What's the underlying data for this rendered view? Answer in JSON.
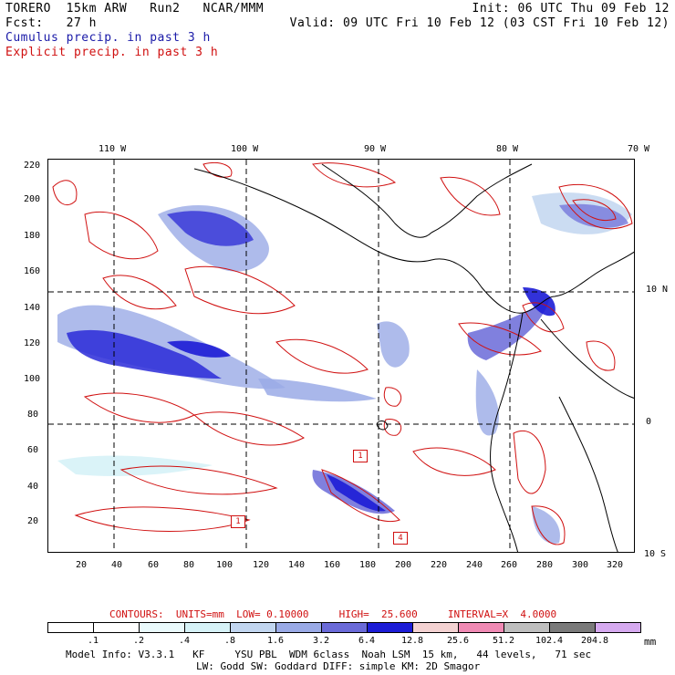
{
  "header": {
    "model": "TORERO  15km ARW   Run2   NCAR/MMM",
    "init": "Init: 06 UTC Thu 09 Feb 12",
    "fcst": "Fcst:   27 h",
    "valid": "Valid: 09 UTC Fri 10 Feb 12 (03 CST Fri 10 Feb 12)"
  },
  "legend": {
    "cumulus": "Cumulus precip. in past 3 h",
    "explicit": "Explicit precip. in past 3 h",
    "cumulus_color": "#1a1aa8",
    "explicit_color": "#d01010"
  },
  "map": {
    "lon_labels": [
      "110 W",
      "100 W",
      "90 W",
      "80 W",
      "70 W"
    ],
    "lat_labels": [
      "10 N",
      "0",
      "10 S"
    ],
    "y_ticks": [
      "220",
      "200",
      "180",
      "160",
      "140",
      "120",
      "100",
      "80",
      "60",
      "40",
      "20"
    ],
    "x_ticks": [
      "20",
      "40",
      "60",
      "80",
      "100",
      "120",
      "140",
      "160",
      "180",
      "200",
      "220",
      "240",
      "260",
      "280",
      "300",
      "320"
    ],
    "box_labels": [
      "1",
      "1",
      "4"
    ]
  },
  "contours_line": {
    "label": "CONTOURS:  UNITS=mm  LOW= 0.10000     HIGH=  25.600     INTERVAL=X  4.0000"
  },
  "colorbar": {
    "labels": [
      ".1",
      ".2",
      ".4",
      ".8",
      "1.6",
      "3.2",
      "6.4",
      "12.8",
      "25.6",
      "51.2",
      "102.4",
      "204.8"
    ],
    "colors": [
      "#ffffff",
      "#ffffff",
      "#eafafc",
      "#d6f2f7",
      "#c2d6f0",
      "#9aaae6",
      "#6a6ad8",
      "#1c1cd6",
      "#f4d2d2",
      "#f08ab4",
      "#bebebe",
      "#7a7a7a",
      "#d6aaf0"
    ],
    "units": "mm"
  },
  "footer": {
    "line1": "Model Info: V3.3.1   KF     YSU PBL  WDM 6class  Noah LSM  15 km,   44 levels,   71 sec",
    "line2": "LW: Godd SW: Goddard DIFF: simple KM: 2D Smagor"
  }
}
